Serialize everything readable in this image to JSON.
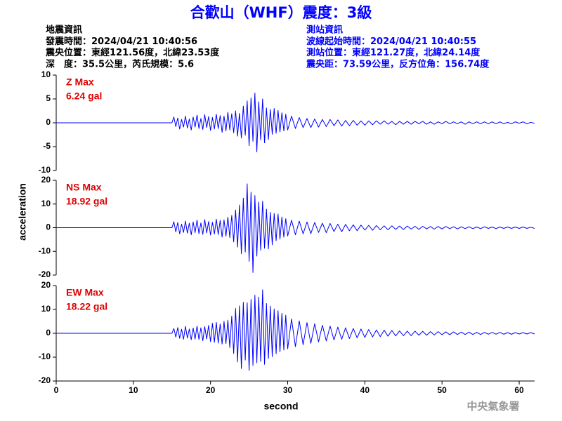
{
  "header": {
    "title": "合歡山（WHF）震度：3級",
    "left": [
      "地震資訊",
      "發震時間：2024/04/21 10:40:56",
      "震央位置：東經121.56度，北緯23.53度",
      "深　度：35.5公里，芮氏規模：5.6"
    ],
    "right": [
      "測站資訊",
      "波線起始時間：2024/04/21 10:40:55",
      "測站位置：東經121.27度，北緯24.14度",
      "震央距：73.59公里，反方位角：156.74度"
    ]
  },
  "ylabel": "acceleration",
  "credit": "中央氣象署",
  "shared_x": {
    "label": "second",
    "xlim": [
      0,
      62
    ],
    "xticks": [
      0,
      10,
      20,
      30,
      40,
      50,
      60
    ],
    "x": [
      0,
      15,
      15.25,
      15.5,
      15.75,
      16,
      16.25,
      16.5,
      16.75,
      17,
      17.25,
      17.5,
      17.75,
      18,
      18.25,
      18.5,
      18.75,
      19,
      19.25,
      19.5,
      19.75,
      20,
      20.25,
      20.5,
      20.75,
      21,
      21.25,
      21.5,
      21.75,
      22,
      22.25,
      22.5,
      22.75,
      23,
      23.25,
      23.5,
      23.75,
      24,
      24.25,
      24.5,
      24.75,
      25,
      25.25,
      25.5,
      25.75,
      26,
      26.25,
      26.5,
      26.75,
      27,
      27.25,
      27.5,
      27.75,
      28,
      28.25,
      28.5,
      28.75,
      29,
      29.25,
      29.5,
      29.75,
      30,
      30.5,
      31,
      31.5,
      32,
      32.5,
      33,
      33.5,
      34,
      34.5,
      35,
      35.5,
      36,
      36.5,
      37,
      37.5,
      38,
      38.5,
      39,
      39.5,
      40,
      40.5,
      41,
      41.5,
      42,
      42.5,
      43,
      43.5,
      44,
      44.5,
      45,
      45.5,
      46,
      46.5,
      47,
      47.5,
      48,
      48.5,
      49,
      49.5,
      50,
      50.5,
      51,
      51.5,
      52,
      52.5,
      53,
      53.5,
      54,
      54.5,
      55,
      55.5,
      56,
      56.5,
      57,
      57.5,
      58,
      58.5,
      59,
      59.5,
      60,
      60.5,
      61,
      61.5,
      62
    ]
  },
  "chart_data": [
    {
      "type": "line",
      "label": "Z Max",
      "peak": "6.24 gal",
      "color": "#0000ff",
      "label_color": "#e00000",
      "ylim": [
        -10,
        10
      ],
      "yticks": [
        -10,
        -5,
        0,
        5,
        10
      ],
      "values": [
        0,
        0,
        1.2,
        -0.8,
        1.0,
        -1.3,
        0.7,
        -0.9,
        1.4,
        -1.1,
        0.8,
        -1.5,
        1.2,
        -0.9,
        1.6,
        -1.2,
        0.9,
        -1.4,
        1.7,
        -1.0,
        1.3,
        -1.6,
        1.1,
        -1.3,
        1.8,
        -1.2,
        1.5,
        -2.0,
        1.4,
        -1.7,
        2.2,
        -1.5,
        1.9,
        -2.1,
        2.5,
        -2.8,
        2.0,
        -3.2,
        3.5,
        -2.6,
        4.6,
        -4.8,
        5.2,
        -3.9,
        6.24,
        -6.1,
        4.4,
        -3.6,
        5.0,
        -4.2,
        3.1,
        -3.5,
        2.8,
        -2.4,
        3.0,
        -2.2,
        2.6,
        -1.9,
        2.1,
        -1.7,
        1.8,
        -1.5,
        1.4,
        -1.2,
        1.1,
        -1.0,
        0.9,
        -1.0,
        0.8,
        -0.9,
        0.7,
        -0.8,
        0.7,
        -0.6,
        0.6,
        -0.7,
        0.5,
        -0.6,
        0.5,
        -0.5,
        0.4,
        -0.5,
        0.4,
        -0.4,
        0.4,
        -0.3,
        0.4,
        -0.3,
        0.3,
        -0.4,
        0.3,
        -0.3,
        0.3,
        -0.3,
        0.3,
        -0.2,
        0.3,
        -0.3,
        0.2,
        -0.3,
        0.2,
        -0.2,
        0.3,
        -0.2,
        0.2,
        -0.2,
        0.2,
        -0.3,
        0.2,
        -0.2,
        0.2,
        -0.2,
        0.2,
        -0.2,
        0.2,
        -0.2,
        0.2,
        -0.2,
        0.1,
        -0.2,
        0.2,
        -0.1,
        0.2,
        -0.2,
        0.1,
        -0.1
      ]
    },
    {
      "type": "line",
      "label": "NS Max",
      "peak": "18.92 gal",
      "color": "#0000ff",
      "label_color": "#e00000",
      "ylim": [
        -20,
        20
      ],
      "yticks": [
        -20,
        -10,
        0,
        10,
        20
      ],
      "values": [
        0,
        0,
        2.5,
        -1.8,
        2.2,
        -2.6,
        1.5,
        -2.0,
        2.8,
        -2.3,
        1.9,
        -3.0,
        2.4,
        -2.1,
        3.2,
        -2.5,
        2.0,
        -2.8,
        3.4,
        -2.2,
        2.6,
        -3.1,
        2.3,
        -2.7,
        3.6,
        -2.9,
        3.1,
        -4.0,
        3.3,
        -3.6,
        4.5,
        -4.2,
        5.2,
        -6.0,
        7.5,
        -8.2,
        9.6,
        -11.0,
        12.5,
        -10.3,
        18.5,
        -14.2,
        15.0,
        -18.92,
        13.6,
        -12.0,
        10.8,
        -9.5,
        11.2,
        -8.7,
        7.8,
        -9.0,
        6.5,
        -7.2,
        6.0,
        -5.5,
        5.8,
        -4.8,
        4.5,
        -4.0,
        3.8,
        -3.5,
        3.2,
        -3.0,
        2.8,
        -2.6,
        2.4,
        -2.5,
        2.2,
        -2.0,
        1.9,
        -2.1,
        1.8,
        -1.6,
        1.5,
        -1.7,
        1.4,
        -1.3,
        1.2,
        -1.3,
        1.1,
        -1.0,
        1.0,
        -1.1,
        0.9,
        -0.9,
        0.8,
        -0.9,
        0.8,
        -0.7,
        0.7,
        -0.8,
        0.7,
        -0.6,
        0.6,
        -0.7,
        0.6,
        -0.5,
        0.5,
        -0.6,
        0.5,
        -0.5,
        0.5,
        -0.4,
        0.4,
        -0.5,
        0.4,
        -0.4,
        0.4,
        -0.4,
        0.3,
        -0.4,
        0.4,
        -0.3,
        0.3,
        -0.4,
        0.3,
        -0.3,
        0.3,
        -0.3,
        0.3,
        -0.3,
        0.3,
        -0.3,
        0.2,
        -0.3
      ]
    },
    {
      "type": "line",
      "label": "EW Max",
      "peak": "18.22 gal",
      "color": "#0000ff",
      "label_color": "#e00000",
      "ylim": [
        -20,
        20
      ],
      "yticks": [
        -20,
        -10,
        0,
        10,
        20
      ],
      "values": [
        0,
        0,
        2.0,
        -1.6,
        2.4,
        -2.1,
        1.7,
        -2.5,
        2.9,
        -2.0,
        1.8,
        -2.7,
        2.2,
        -2.4,
        3.0,
        -2.6,
        2.3,
        -3.1,
        2.8,
        -2.4,
        3.3,
        -3.5,
        4.2,
        -3.8,
        4.6,
        -4.1,
        3.9,
        -4.5,
        5.0,
        -4.3,
        5.5,
        -6.0,
        7.2,
        -8.5,
        10.4,
        -12.0,
        11.5,
        -14.8,
        13.0,
        -11.2,
        12.8,
        -15.6,
        14.2,
        -13.5,
        16.0,
        -12.4,
        15.2,
        -11.8,
        18.22,
        -13.0,
        12.5,
        -10.6,
        11.4,
        -9.8,
        10.2,
        -8.6,
        9.5,
        -7.8,
        8.4,
        -7.0,
        7.6,
        -6.5,
        6.0,
        -5.6,
        5.2,
        -4.8,
        4.5,
        -4.2,
        4.0,
        -3.6,
        3.4,
        -3.2,
        3.0,
        -2.8,
        2.6,
        -2.5,
        2.3,
        -2.2,
        2.0,
        -1.9,
        1.8,
        -1.7,
        1.6,
        -1.5,
        1.4,
        -1.4,
        1.3,
        -1.2,
        1.2,
        -1.1,
        1.0,
        -1.0,
        0.9,
        -1.0,
        0.9,
        -0.8,
        0.8,
        -0.8,
        0.7,
        -0.7,
        0.7,
        -0.6,
        0.6,
        -0.6,
        0.6,
        -0.5,
        0.5,
        -0.5,
        0.5,
        -0.5,
        0.4,
        -0.5,
        0.4,
        -0.4,
        0.4,
        -0.4,
        0.4,
        -0.4,
        0.3,
        -0.4,
        0.3,
        -0.3,
        0.3,
        -0.3,
        0.3,
        -0.3
      ]
    }
  ]
}
